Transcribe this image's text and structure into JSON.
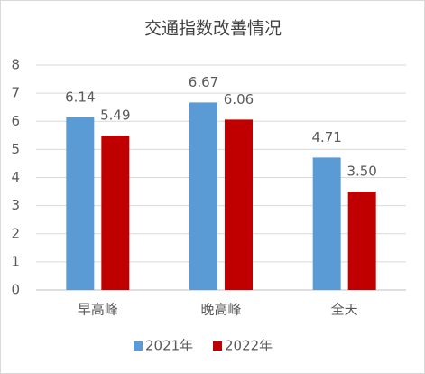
{
  "chart_data": {
    "type": "bar",
    "title": "交通指数改善情况",
    "categories": [
      "早高峰",
      "晚高峰",
      "全天"
    ],
    "series": [
      {
        "name": "2021年",
        "color": "#5b9bd5",
        "values": [
          6.14,
          6.67,
          4.71
        ]
      },
      {
        "name": "2022年",
        "color": "#c00000",
        "values": [
          5.49,
          6.06,
          3.5
        ],
        "value_labels": [
          "5.49",
          "6.06",
          "3.50"
        ]
      }
    ],
    "ylim": [
      0,
      8
    ],
    "yticks": [
      0,
      1,
      2,
      3,
      4,
      5,
      6,
      7,
      8
    ],
    "grid": true,
    "legend": "bottom"
  }
}
